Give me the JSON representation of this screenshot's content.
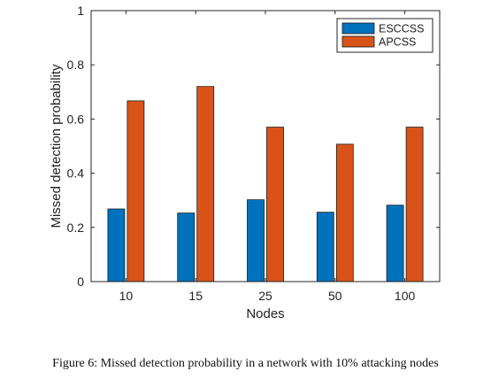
{
  "caption": "Figure 6: Missed detection probability in a network with 10% attacking nodes",
  "chart_data": {
    "type": "bar",
    "title": "",
    "xlabel": "Nodes",
    "ylabel": "Missed detection probability",
    "categories": [
      "10",
      "15",
      "25",
      "50",
      "100"
    ],
    "ylim": [
      0,
      1
    ],
    "yticks": [
      "0",
      "0.2",
      "0.4",
      "0.6",
      "0.8",
      "1"
    ],
    "grid": false,
    "legend_position": "top-right",
    "series": [
      {
        "name": "ESCCSS",
        "color": "#0072BD",
        "values": [
          0.268,
          0.253,
          0.302,
          0.256,
          0.282
        ]
      },
      {
        "name": "APCSS",
        "color": "#D95319",
        "values": [
          0.667,
          0.72,
          0.57,
          0.507,
          0.57
        ]
      }
    ]
  }
}
